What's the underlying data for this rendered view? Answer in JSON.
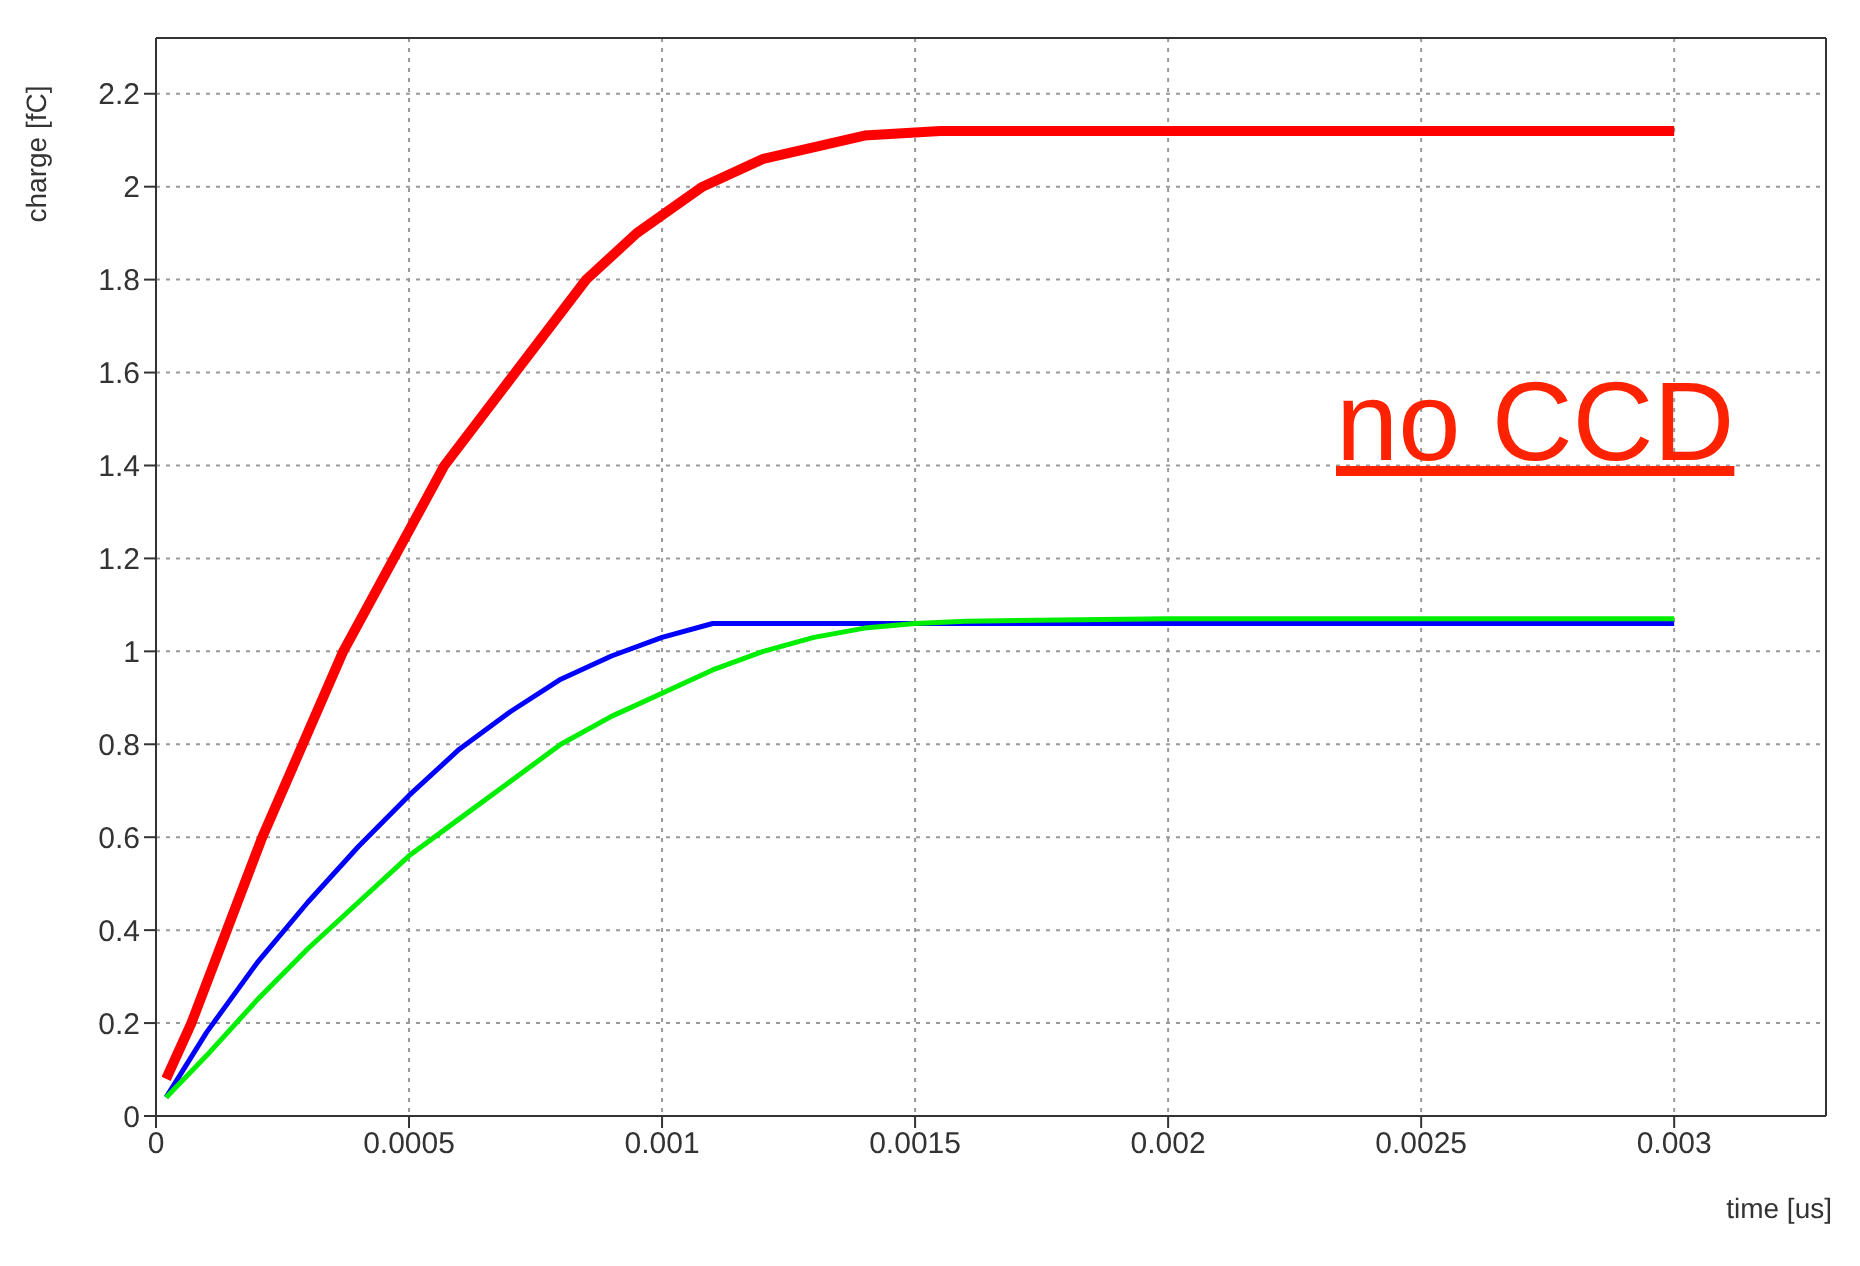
{
  "chart_data": {
    "type": "line",
    "xlabel": "time [us]",
    "ylabel": "charge [fC]",
    "annotations": [
      "no CCD"
    ],
    "xlim": [
      0,
      0.0033
    ],
    "ylim": [
      0,
      2.32
    ],
    "xticks": [
      0,
      0.0005,
      0.001,
      0.0015,
      0.002,
      0.0025,
      0.003
    ],
    "yticks": [
      0,
      0.2,
      0.4,
      0.6,
      0.8,
      1,
      1.2,
      1.4,
      1.6,
      1.8,
      2,
      2.2
    ],
    "grid": true,
    "marker": "none",
    "line_style": "solid",
    "legend": false,
    "x": [
      2e-05,
      0.0001,
      0.0002,
      0.0003,
      0.0004,
      0.0005,
      0.0006,
      0.0007,
      0.0008,
      0.0009,
      0.001,
      0.0011,
      0.0012,
      0.0013,
      0.0014,
      0.0015,
      0.0016,
      0.002,
      0.0025,
      0.003
    ],
    "series": [
      {
        "color": "#ff0000",
        "x": [
          2e-05,
          7e-05,
          0.00014,
          0.00021,
          0.00029,
          0.00037,
          0.00047,
          0.00057,
          0.00071,
          0.00085,
          0.00095,
          0.00108,
          0.0012,
          0.0014,
          0.00155,
          0.002,
          0.003
        ],
        "values": [
          0.08,
          0.2,
          0.4,
          0.6,
          0.8,
          1.0,
          1.2,
          1.4,
          1.6,
          1.8,
          1.9,
          2.0,
          2.06,
          2.11,
          2.12,
          2.12,
          2.12
        ]
      },
      {
        "color": "#0000ff",
        "values": [
          0.04,
          0.18,
          0.33,
          0.46,
          0.58,
          0.69,
          0.79,
          0.87,
          0.94,
          0.99,
          1.03,
          1.06,
          1.06,
          1.06,
          1.06,
          1.06,
          1.06,
          1.06,
          1.06,
          1.06
        ]
      },
      {
        "color": "#00ee00",
        "values": [
          0.04,
          0.13,
          0.25,
          0.36,
          0.46,
          0.56,
          0.64,
          0.72,
          0.8,
          0.86,
          0.91,
          0.96,
          1.0,
          1.03,
          1.05,
          1.06,
          1.065,
          1.07,
          1.07,
          1.07
        ]
      }
    ]
  }
}
